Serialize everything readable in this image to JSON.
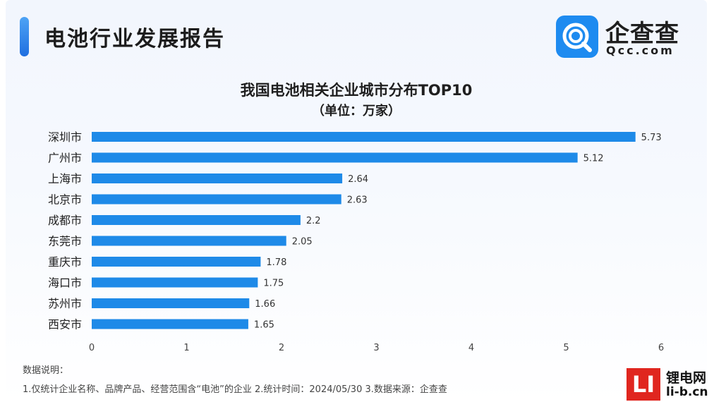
{
  "header": {
    "title": "电池行业发展报告"
  },
  "logo": {
    "name": "企查查",
    "domain": "Qcc.com",
    "icon": "qcc-logo-icon",
    "color": "#1e8bf0"
  },
  "chart_data": {
    "type": "bar",
    "orientation": "horizontal",
    "title": "我国电池相关企业城市分布TOP10",
    "subtitle": "（单位：万家）",
    "categories": [
      "深圳市",
      "广州市",
      "上海市",
      "北京市",
      "成都市",
      "东莞市",
      "重庆市",
      "海口市",
      "苏州市",
      "西安市"
    ],
    "values": [
      5.73,
      5.12,
      2.64,
      2.63,
      2.2,
      2.05,
      1.78,
      1.75,
      1.66,
      1.65
    ],
    "value_labels": [
      "5.73",
      "5.12",
      "2.64",
      "2.63",
      "2.2",
      "2.05",
      "1.78",
      "1.75",
      "1.66",
      "1.65"
    ],
    "xlim": [
      0,
      6
    ],
    "xticks": [
      0,
      1,
      2,
      3,
      4,
      5,
      6
    ],
    "bar_color": "#1e8ae8",
    "grid": false,
    "legend": "none"
  },
  "notes": {
    "label": "数据说明：",
    "text": "1.仅统计企业名称、品牌产品、经营范围含“电池”的企业  2.统计时间：2024/05/30  3.数据来源：企查查"
  },
  "watermark": {
    "badge": "LI",
    "name": "锂电网",
    "domain": "li-b.cn",
    "color": "#e0261f"
  }
}
